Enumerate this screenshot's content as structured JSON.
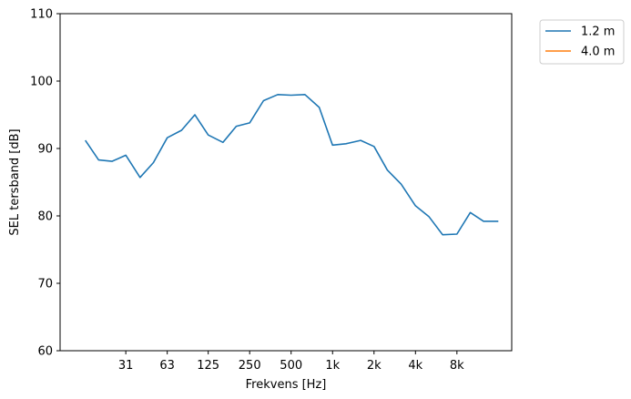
{
  "chart_data": {
    "type": "line",
    "xlabel": "Frekvens [Hz]",
    "ylabel": "SEL tersband [dB]",
    "x_scale": "log",
    "xlim": [
      10.5,
      20000
    ],
    "ylim": [
      60,
      110
    ],
    "x_ticks": [
      {
        "value": 31.5,
        "label": "31"
      },
      {
        "value": 63,
        "label": "63"
      },
      {
        "value": 125,
        "label": "125"
      },
      {
        "value": 250,
        "label": "250"
      },
      {
        "value": 500,
        "label": "500"
      },
      {
        "value": 1000,
        "label": "1k"
      },
      {
        "value": 2000,
        "label": "2k"
      },
      {
        "value": 4000,
        "label": "4k"
      },
      {
        "value": 8000,
        "label": "8k"
      }
    ],
    "y_ticks": [
      60,
      70,
      80,
      90,
      100,
      110
    ],
    "grid": false,
    "legend_position": "outside-top-right",
    "series": [
      {
        "name": "1.2 m",
        "color": "#1f77b4",
        "x": [
          16,
          20,
          25,
          31.5,
          40,
          50,
          63,
          80,
          100,
          125,
          160,
          200,
          250,
          315,
          400,
          500,
          630,
          800,
          1000,
          1250,
          1600,
          2000,
          2500,
          3150,
          4000,
          5000,
          6300,
          8000,
          10000,
          12500,
          16000
        ],
        "values": [
          91.2,
          88.3,
          88.1,
          89.0,
          85.7,
          87.9,
          91.6,
          92.7,
          95.0,
          92.0,
          90.9,
          93.3,
          93.8,
          97.1,
          98.0,
          97.9,
          98.0,
          96.1,
          90.5,
          90.7,
          91.2,
          90.3,
          86.8,
          84.7,
          81.5,
          79.9,
          77.2,
          77.3,
          80.5,
          79.2,
          79.2
        ]
      },
      {
        "name": "4.0 m",
        "color": "#ff7f0e",
        "x": [],
        "values": []
      }
    ]
  }
}
